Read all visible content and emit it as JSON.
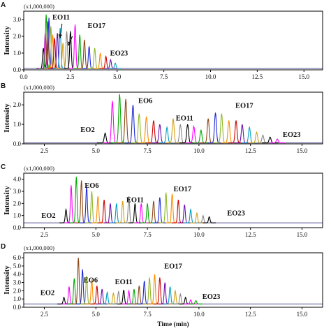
{
  "chart_data": [
    {
      "type": "line",
      "panel_letter": "A",
      "scale_label": "(x1,000,000)",
      "ylabel": "Intensity",
      "xlim": [
        0,
        16
      ],
      "ylim": [
        0,
        3.5
      ],
      "xticks": [
        0.0,
        2.5,
        5.0,
        7.5,
        10.0,
        12.5,
        15.0
      ],
      "xtick_labels": [
        "0.0",
        "2.5",
        "5.0",
        "7.5",
        "10.0",
        "12.5",
        "15.0"
      ],
      "yticks": [
        0,
        1,
        2,
        3
      ],
      "ytick_labels": [
        "0.0",
        "1.0",
        "2.0",
        "3.0"
      ],
      "baseline": 0.08,
      "peak_width": 0.09,
      "colors": [
        "#000000",
        "#ff00ff",
        "#00aa00",
        "#8b4513",
        "#1e2ad6",
        "#8fb82a",
        "#ff8c00",
        "#cc0000",
        "#6a0dad",
        "#00a0c0",
        "#d4a017",
        "#888888"
      ],
      "peaks": [
        {
          "x": 1.05,
          "y": 1.3
        },
        {
          "x": 1.15,
          "y": 2.2
        },
        {
          "x": 1.2,
          "y": 3.3
        },
        {
          "x": 1.28,
          "y": 2.9
        },
        {
          "x": 1.35,
          "y": 3.1
        },
        {
          "x": 1.45,
          "y": 2.6
        },
        {
          "x": 1.55,
          "y": 2.1
        },
        {
          "x": 1.65,
          "y": 1.9
        },
        {
          "x": 1.8,
          "y": 2.2
        },
        {
          "x": 1.95,
          "y": 2.5
        },
        {
          "x": 2.1,
          "y": 1.6
        },
        {
          "x": 2.3,
          "y": 2.3
        },
        {
          "x": 2.5,
          "y": 2.3
        },
        {
          "x": 2.75,
          "y": 2.7
        },
        {
          "x": 3.0,
          "y": 2.1
        },
        {
          "x": 3.25,
          "y": 1.8
        },
        {
          "x": 3.5,
          "y": 1.4
        },
        {
          "x": 3.8,
          "y": 1.3
        },
        {
          "x": 4.1,
          "y": 1.0
        },
        {
          "x": 4.4,
          "y": 0.8
        },
        {
          "x": 4.65,
          "y": 0.6
        },
        {
          "x": 4.9,
          "y": 0.4
        }
      ],
      "annotations": [
        {
          "text": "EO11",
          "x": 2.0,
          "y": 3.0
        },
        {
          "text": "EO17",
          "x": 3.9,
          "y": 2.5
        },
        {
          "text": "EO23",
          "x": 5.1,
          "y": 0.85
        }
      ],
      "arrows": [
        {
          "x1": 2.05,
          "y1": 2.75,
          "x2": 1.95,
          "y2": 1.9
        },
        {
          "x1": 2.6,
          "y1": 2.0,
          "x2": 2.4,
          "y2": 1.45
        }
      ]
    },
    {
      "type": "line",
      "panel_letter": "B",
      "scale_label": "(x1,000,000)",
      "ylabel": "Intensity",
      "xlim": [
        1.5,
        16
      ],
      "ylim": [
        0,
        2.65
      ],
      "xticks": [
        2.5,
        5.0,
        7.5,
        10.0,
        12.5,
        15.0
      ],
      "xtick_labels": [
        "2.5",
        "5.0",
        "7.5",
        "10.0",
        "12.5",
        "15.0"
      ],
      "yticks": [
        0,
        1,
        2
      ],
      "ytick_labels": [
        "0.0",
        "1.0",
        "2.0"
      ],
      "baseline": 0.05,
      "peak_width": 0.1,
      "colors": [
        "#000000",
        "#ff00ff",
        "#00aa00",
        "#8b4513",
        "#1e2ad6",
        "#8fb82a",
        "#ff8c00",
        "#cc0000",
        "#6a0dad",
        "#00a0c0",
        "#d4a017",
        "#888888"
      ],
      "peaks": [
        {
          "x": 5.45,
          "y": 0.55
        },
        {
          "x": 5.8,
          "y": 2.2
        },
        {
          "x": 6.15,
          "y": 2.55
        },
        {
          "x": 6.45,
          "y": 2.3
        },
        {
          "x": 6.8,
          "y": 2.0
        },
        {
          "x": 7.1,
          "y": 1.55
        },
        {
          "x": 7.45,
          "y": 1.4
        },
        {
          "x": 7.8,
          "y": 1.2
        },
        {
          "x": 8.1,
          "y": 1.0
        },
        {
          "x": 8.45,
          "y": 0.85
        },
        {
          "x": 8.75,
          "y": 1.3
        },
        {
          "x": 9.1,
          "y": 1.0
        },
        {
          "x": 9.45,
          "y": 1.0
        },
        {
          "x": 9.75,
          "y": 0.9
        },
        {
          "x": 10.1,
          "y": 0.7
        },
        {
          "x": 10.45,
          "y": 1.3
        },
        {
          "x": 10.8,
          "y": 1.6
        },
        {
          "x": 11.1,
          "y": 1.55
        },
        {
          "x": 11.45,
          "y": 1.2
        },
        {
          "x": 11.8,
          "y": 1.2
        },
        {
          "x": 12.1,
          "y": 1.0
        },
        {
          "x": 12.45,
          "y": 0.85
        },
        {
          "x": 12.8,
          "y": 0.6
        },
        {
          "x": 13.1,
          "y": 0.45
        },
        {
          "x": 13.45,
          "y": 0.35
        },
        {
          "x": 13.8,
          "y": 0.25
        }
      ],
      "annotations": [
        {
          "text": "EO2",
          "x": 4.6,
          "y": 0.6
        },
        {
          "text": "EO6",
          "x": 7.4,
          "y": 2.1
        },
        {
          "text": "EO11",
          "x": 9.3,
          "y": 1.2
        },
        {
          "text": "EO17",
          "x": 12.2,
          "y": 1.85
        },
        {
          "text": "EO23",
          "x": 14.5,
          "y": 0.35
        }
      ],
      "arrows": []
    },
    {
      "type": "line",
      "panel_letter": "C",
      "scale_label": "(x1,000,000)",
      "ylabel": "Intensity",
      "xlim": [
        1.5,
        16
      ],
      "ylim": [
        0,
        4.5
      ],
      "xticks": [
        2.5,
        5.0,
        7.5,
        10.0,
        12.5,
        15.0
      ],
      "xtick_labels": [
        "2.5",
        "5.0",
        "7.5",
        "10.0",
        "12.5",
        "15.0"
      ],
      "yticks": [
        0,
        1,
        2,
        3,
        4
      ],
      "ytick_labels": [
        "0.0",
        "1.0",
        "2.0",
        "3.0",
        "4.0"
      ],
      "baseline": 0.4,
      "peak_width": 0.08,
      "colors": [
        "#000000",
        "#ff00ff",
        "#00aa00",
        "#8b4513",
        "#1e2ad6",
        "#8fb82a",
        "#ff8c00",
        "#cc0000",
        "#6a0dad",
        "#00a0c0",
        "#d4a017",
        "#888888"
      ],
      "peaks": [
        {
          "x": 3.55,
          "y": 1.5
        },
        {
          "x": 3.8,
          "y": 3.5
        },
        {
          "x": 4.05,
          "y": 4.2
        },
        {
          "x": 4.3,
          "y": 3.9
        },
        {
          "x": 4.55,
          "y": 3.4
        },
        {
          "x": 4.8,
          "y": 3.0
        },
        {
          "x": 5.1,
          "y": 2.6
        },
        {
          "x": 5.4,
          "y": 2.3
        },
        {
          "x": 5.7,
          "y": 2.0
        },
        {
          "x": 6.0,
          "y": 2.0
        },
        {
          "x": 6.3,
          "y": 2.2
        },
        {
          "x": 6.6,
          "y": 2.6
        },
        {
          "x": 6.9,
          "y": 2.0
        },
        {
          "x": 7.2,
          "y": 2.0
        },
        {
          "x": 7.5,
          "y": 2.0
        },
        {
          "x": 7.8,
          "y": 2.2
        },
        {
          "x": 8.1,
          "y": 2.5
        },
        {
          "x": 8.4,
          "y": 2.9
        },
        {
          "x": 8.7,
          "y": 2.8
        },
        {
          "x": 9.0,
          "y": 2.3
        },
        {
          "x": 9.3,
          "y": 1.9
        },
        {
          "x": 9.6,
          "y": 1.5
        },
        {
          "x": 9.9,
          "y": 1.2
        },
        {
          "x": 10.2,
          "y": 1.0
        },
        {
          "x": 10.5,
          "y": 0.9
        }
      ],
      "annotations": [
        {
          "text": "EO2",
          "x": 2.7,
          "y": 0.8
        },
        {
          "text": "EO6",
          "x": 4.8,
          "y": 3.3
        },
        {
          "text": "EO11",
          "x": 6.9,
          "y": 2.1
        },
        {
          "text": "EO17",
          "x": 9.2,
          "y": 3.0
        },
        {
          "text": "EO23",
          "x": 11.8,
          "y": 1.0
        }
      ],
      "arrows": []
    },
    {
      "type": "line",
      "panel_letter": "D",
      "scale_label": "(x1,000,000)",
      "ylabel": "Intensity",
      "xlabel": "Time (min)",
      "xlim": [
        1.5,
        16
      ],
      "ylim": [
        0,
        6.6
      ],
      "xticks": [
        2.5,
        5.0,
        7.5,
        10.0,
        12.5,
        15.0
      ],
      "xtick_labels": [
        "2.5",
        "5.0",
        "7.5",
        "10.0",
        "12.5",
        "15.0"
      ],
      "yticks": [
        0,
        1,
        2,
        3,
        4,
        5,
        6
      ],
      "ytick_labels": [
        "0.0",
        "1.0",
        "2.0",
        "3.0",
        "4.0",
        "5.0",
        "6.0"
      ],
      "baseline": 0.4,
      "peak_width": 0.08,
      "colors": [
        "#000000",
        "#ff00ff",
        "#00aa00",
        "#8b4513",
        "#1e2ad6",
        "#8fb82a",
        "#ff8c00",
        "#cc0000",
        "#6a0dad",
        "#00a0c0",
        "#d4a017",
        "#888888"
      ],
      "peaks": [
        {
          "x": 3.45,
          "y": 1.2
        },
        {
          "x": 3.7,
          "y": 2.5
        },
        {
          "x": 3.95,
          "y": 3.5
        },
        {
          "x": 4.15,
          "y": 6.0
        },
        {
          "x": 4.35,
          "y": 4.6
        },
        {
          "x": 4.55,
          "y": 3.8
        },
        {
          "x": 4.8,
          "y": 3.4
        },
        {
          "x": 5.05,
          "y": 2.6
        },
        {
          "x": 5.3,
          "y": 2.2
        },
        {
          "x": 5.55,
          "y": 1.8
        },
        {
          "x": 5.85,
          "y": 1.7
        },
        {
          "x": 6.1,
          "y": 1.9
        },
        {
          "x": 6.35,
          "y": 2.1
        },
        {
          "x": 6.6,
          "y": 2.0
        },
        {
          "x": 6.85,
          "y": 2.2
        },
        {
          "x": 7.1,
          "y": 2.6
        },
        {
          "x": 7.35,
          "y": 3.2
        },
        {
          "x": 7.6,
          "y": 3.6
        },
        {
          "x": 7.85,
          "y": 4.0
        },
        {
          "x": 8.1,
          "y": 3.6
        },
        {
          "x": 8.35,
          "y": 3.0
        },
        {
          "x": 8.6,
          "y": 2.5
        },
        {
          "x": 8.85,
          "y": 2.0
        },
        {
          "x": 9.1,
          "y": 1.6
        },
        {
          "x": 9.35,
          "y": 1.2
        },
        {
          "x": 9.6,
          "y": 0.9
        },
        {
          "x": 9.85,
          "y": 0.8
        }
      ],
      "annotations": [
        {
          "text": "EO2",
          "x": 2.65,
          "y": 1.5
        },
        {
          "text": "EO6",
          "x": 4.75,
          "y": 3.0
        },
        {
          "text": "EO11",
          "x": 6.35,
          "y": 2.8
        },
        {
          "text": "EO17",
          "x": 8.75,
          "y": 4.7
        },
        {
          "text": "EO23",
          "x": 10.6,
          "y": 1.0
        }
      ],
      "arrows": []
    }
  ]
}
